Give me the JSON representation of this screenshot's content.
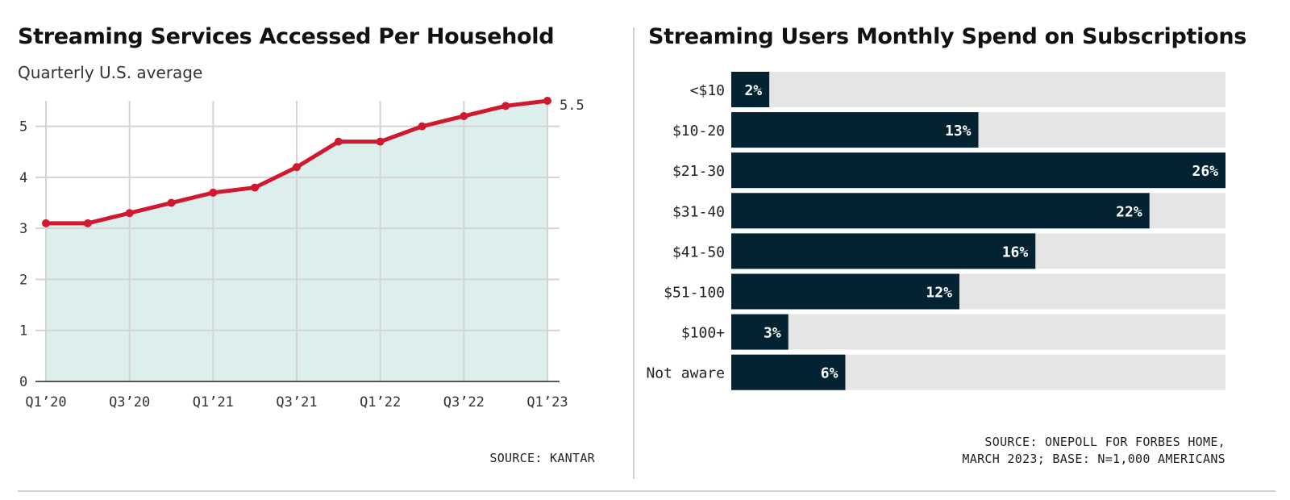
{
  "left": {
    "title": "Streaming Services Accessed Per Household",
    "subtitle": "Quarterly U.S. average",
    "source": "SOURCE: KANTAR"
  },
  "right": {
    "title": "Streaming Users Monthly Spend on Subscriptions",
    "source_line1": "SOURCE: ONEPOLL FOR FORBES HOME,",
    "source_line2": "MARCH 2023; BASE: N=1,000 AMERICANS"
  },
  "colors": {
    "line": "#d0182f",
    "area": "#dcefed",
    "grid": "#d4d4d4",
    "bar": "#032232",
    "bar_track": "#e6e5e5"
  },
  "chart_data": [
    {
      "type": "area",
      "title": "Streaming Services Accessed Per Household",
      "subtitle": "Quarterly U.S. average",
      "x": [
        "Q1'20",
        "Q2'20",
        "Q3'20",
        "Q4'20",
        "Q1'21",
        "Q2'21",
        "Q3'21",
        "Q4'21",
        "Q1'22",
        "Q2'22",
        "Q3'22",
        "Q4'22",
        "Q1'23"
      ],
      "x_tick_labels": [
        "Q1’20",
        "Q3’20",
        "Q1’21",
        "Q3’21",
        "Q1’22",
        "Q3’22",
        "Q1’23"
      ],
      "y": [
        3.1,
        3.1,
        3.3,
        3.5,
        3.7,
        3.8,
        4.2,
        4.7,
        4.7,
        5.0,
        5.2,
        5.4,
        5.5
      ],
      "end_label": "5.5",
      "y_ticks": [
        0,
        1,
        2,
        3,
        4,
        5
      ],
      "ylim": [
        0,
        5.5
      ],
      "grid": true
    },
    {
      "type": "bar",
      "orientation": "horizontal",
      "title": "Streaming Users Monthly Spend on Subscriptions",
      "categories": [
        "<$10",
        "$10-20",
        "$21-30",
        "$31-40",
        "$41-50",
        "$51-100",
        "$100+",
        "Not aware"
      ],
      "values": [
        2,
        13,
        26,
        22,
        16,
        12,
        3,
        6
      ],
      "value_labels": [
        "2%",
        "13%",
        "26%",
        "22%",
        "16%",
        "12%",
        "3%",
        "6%"
      ],
      "xlim": [
        0,
        26
      ]
    }
  ]
}
